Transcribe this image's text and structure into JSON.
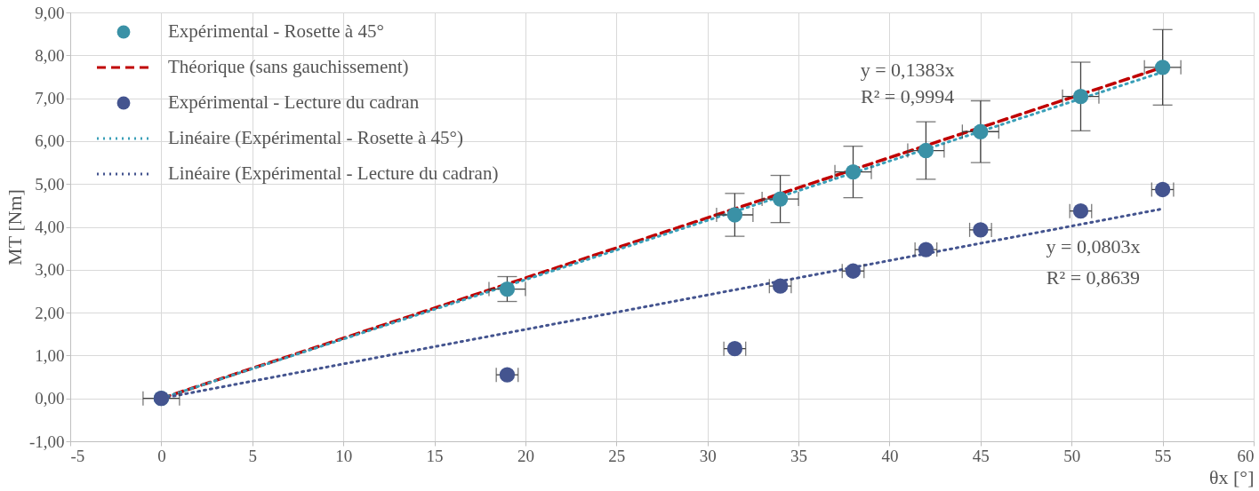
{
  "chart_data": {
    "type": "scatter",
    "xlabel": "θx [°]",
    "ylabel": "MT [Nm]",
    "xlim": [
      -5,
      60
    ],
    "ylim": [
      -1,
      9
    ],
    "xticks": [
      -5,
      0,
      5,
      10,
      15,
      20,
      25,
      30,
      35,
      40,
      45,
      50,
      55,
      60
    ],
    "yticks": [
      {
        "value": -1,
        "label": "-1,00"
      },
      {
        "value": 0,
        "label": "0,00"
      },
      {
        "value": 1,
        "label": "1,00"
      },
      {
        "value": 2,
        "label": "2,00"
      },
      {
        "value": 3,
        "label": "3,00"
      },
      {
        "value": 4,
        "label": "4,00"
      },
      {
        "value": 5,
        "label": "5,00"
      },
      {
        "value": 6,
        "label": "6,00"
      },
      {
        "value": 7,
        "label": "7,00"
      },
      {
        "value": 8,
        "label": "8,00"
      },
      {
        "value": 9,
        "label": "9,00"
      }
    ],
    "grid": true,
    "legend": "top left",
    "series": [
      {
        "name": "Expérimental - Rosette à 45°",
        "color": "#3a91a6",
        "marker": "circle",
        "x": [
          0,
          19,
          31.5,
          34,
          38,
          42,
          45,
          50.5,
          55
        ],
        "values": [
          0,
          2.55,
          4.28,
          4.65,
          5.28,
          5.78,
          6.22,
          7.04,
          7.72
        ],
        "errors": [
          null,
          0.29,
          0.5,
          0.55,
          0.6,
          0.67,
          0.72,
          0.8,
          0.88
        ],
        "xerrors": [
          1,
          1,
          1,
          1,
          1,
          1,
          1,
          1,
          1
        ]
      },
      {
        "name": "Théorique (sans gauchissement)",
        "type": "line",
        "color": "#c00000",
        "line_style": "dashed",
        "x": [
          0,
          55
        ],
        "values": [
          0,
          7.72
        ]
      },
      {
        "name": "Expérimental - Lecture du cadran",
        "color": "#44548f",
        "marker": "circle",
        "x": [
          0,
          19,
          31.5,
          34,
          38,
          42,
          45,
          50.5,
          55
        ],
        "values": [
          0,
          0.55,
          1.16,
          2.62,
          2.97,
          3.47,
          3.93,
          4.37,
          4.87
        ],
        "xerrors": [
          null,
          0.6,
          0.6,
          0.6,
          0.6,
          0.6,
          0.6,
          0.6,
          0.6
        ]
      },
      {
        "name": "Linéaire (Expérimental - Rosette à 45°)",
        "type": "line",
        "color": "#3a9fb8",
        "line_style": "dotted",
        "x": [
          0,
          55
        ],
        "values": [
          0,
          7.61
        ]
      },
      {
        "name": "Linéaire (Expérimental - Lecture du cadran)",
        "type": "line",
        "color": "#44548f",
        "line_style": "dotted",
        "x": [
          0,
          55
        ],
        "values": [
          0,
          4.42
        ]
      }
    ],
    "annotations": [
      "y = 0,1383x",
      "R² = 0,9994",
      "y = 0,0803x",
      "R² = 0,8639"
    ]
  }
}
